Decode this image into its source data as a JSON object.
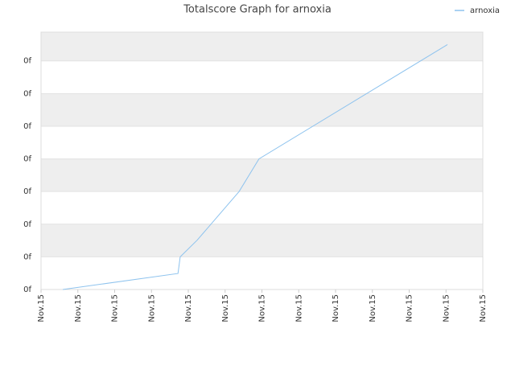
{
  "chart_data": {
    "type": "line",
    "title": "Totalscore Graph for arnoxia",
    "x": [
      0.59,
      3.72,
      3.78,
      4.24,
      5.38,
      5.92,
      11.04
    ],
    "series": [
      {
        "name": "arnoxia",
        "color": "#8ec3ee",
        "values": [
          0,
          0.49,
          1.0,
          1.51,
          3.0,
          4.0,
          7.5
        ]
      }
    ],
    "xlim": [
      0,
      12
    ],
    "xticks": [
      {
        "value": 0,
        "label": "Nov.15"
      },
      {
        "value": 1,
        "label": "Nov.15"
      },
      {
        "value": 2,
        "label": "Nov.15"
      },
      {
        "value": 3,
        "label": "Nov.15"
      },
      {
        "value": 4,
        "label": "Nov.15"
      },
      {
        "value": 5,
        "label": "Nov.15"
      },
      {
        "value": 6,
        "label": "Nov.15"
      },
      {
        "value": 7,
        "label": "Nov.15"
      },
      {
        "value": 8,
        "label": "Nov.15"
      },
      {
        "value": 9,
        "label": "Nov.15"
      },
      {
        "value": 10,
        "label": "Nov.15"
      },
      {
        "value": 11,
        "label": "Nov.15"
      },
      {
        "value": 12,
        "label": "Nov.15"
      }
    ],
    "ylim": [
      0,
      7.88
    ],
    "yticks": [
      {
        "value": 0,
        "label": "0f"
      },
      {
        "value": 1,
        "label": "0f"
      },
      {
        "value": 2,
        "label": "0f"
      },
      {
        "value": 3,
        "label": "0f"
      },
      {
        "value": 4,
        "label": "0f"
      },
      {
        "value": 5,
        "label": "0f"
      },
      {
        "value": 6,
        "label": "0f"
      },
      {
        "value": 7,
        "label": "0f"
      }
    ],
    "grid": true,
    "legend": "top-right"
  }
}
